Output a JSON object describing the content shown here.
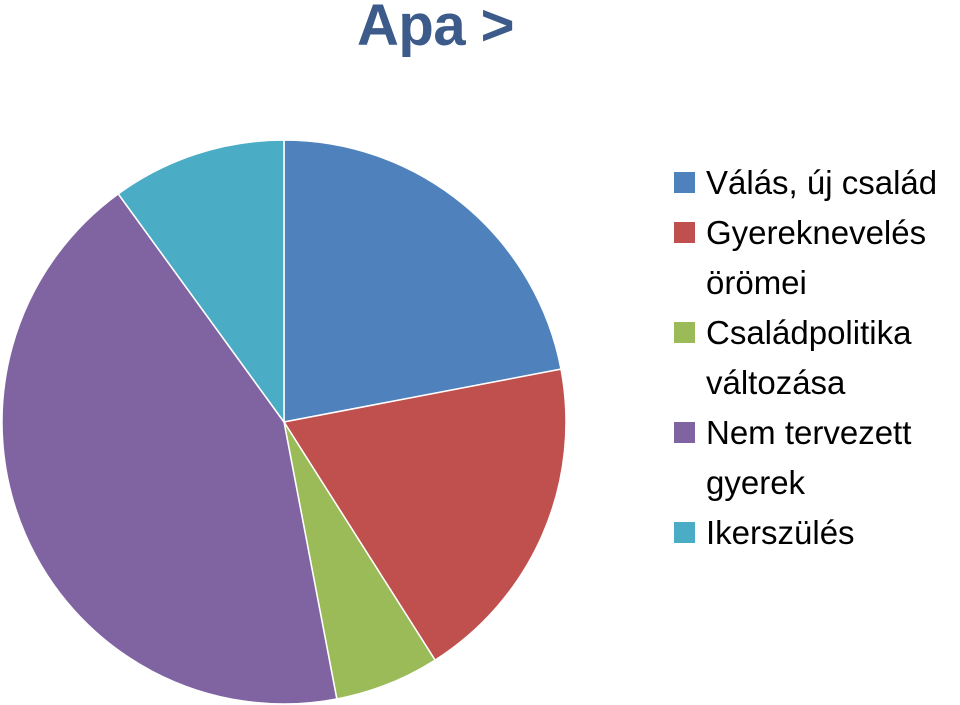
{
  "title": "Apa >",
  "chart_data": {
    "type": "pie",
    "title": "Apa >",
    "series": [
      {
        "name": "Válás, új család",
        "value": 22,
        "color": "#4f81bd"
      },
      {
        "name": "Gyereknevelés örömei",
        "value": 19,
        "color": "#c0504d"
      },
      {
        "name": "Családpolitika változása",
        "value": 6,
        "color": "#9bbb59"
      },
      {
        "name": "Nem tervezett gyerek",
        "value": 43,
        "color": "#8064a2"
      },
      {
        "name": "Ikerszülés",
        "value": 10,
        "color": "#4bacc6"
      }
    ],
    "legend_position": "right"
  }
}
